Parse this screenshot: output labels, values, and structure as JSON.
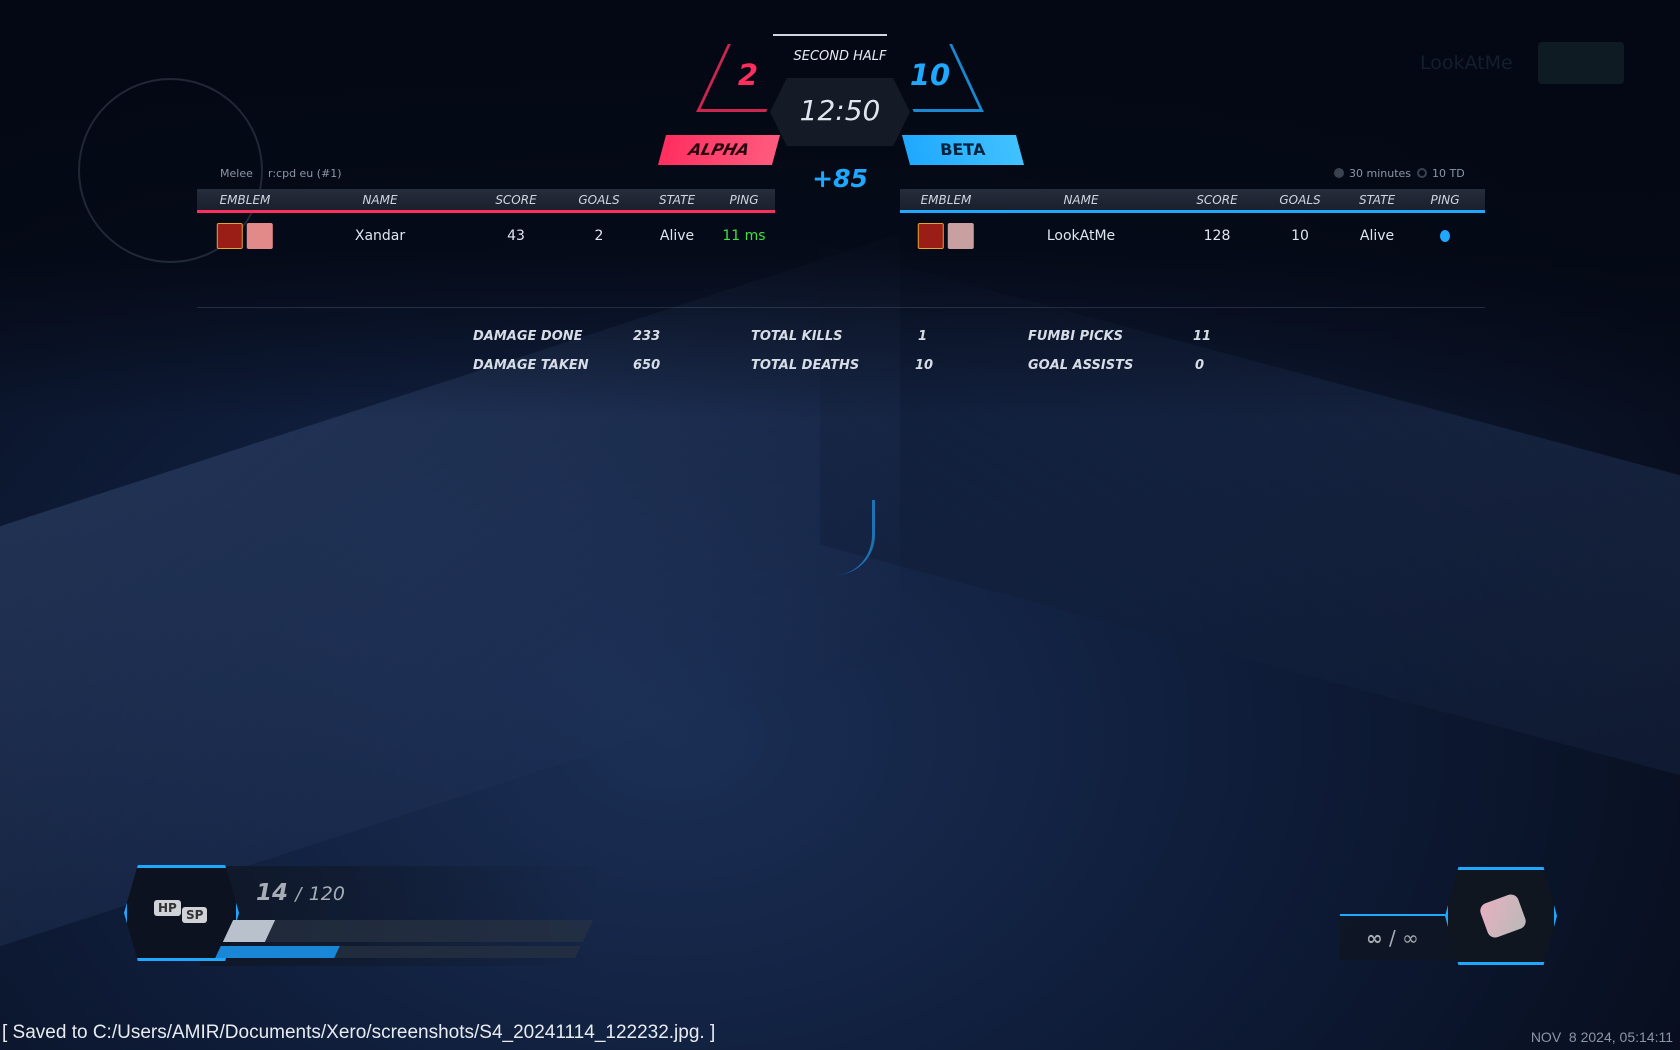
{
  "match": {
    "phase": "SECOND HALF",
    "timer": "12:50",
    "score_diff": "+85",
    "mode": "Melee",
    "server": "r:cpd eu (#1)",
    "time_limit": "30 minutes",
    "goal_limit": "10 TD"
  },
  "teams": [
    {
      "name": "ALPHA",
      "score": "2",
      "color": "#ff2e5f"
    },
    {
      "name": "BETA",
      "score": "10",
      "color": "#1fa8ff"
    }
  ],
  "columns": [
    "EMBLEM",
    "NAME",
    "SCORE",
    "GOALS",
    "STATE",
    "PING"
  ],
  "alpha_players": [
    {
      "name": "Xandar",
      "score": "43",
      "goals": "2",
      "state": "Alive",
      "ping": "11 ms",
      "ping_color": "#3ee043"
    }
  ],
  "beta_players": [
    {
      "name": "LookAtMe",
      "score": "128",
      "goals": "10",
      "state": "Alive",
      "ping_icon": "connection-icon"
    }
  ],
  "stats": [
    {
      "label": "DAMAGE DONE",
      "value": "233"
    },
    {
      "label": "DAMAGE TAKEN",
      "value": "650"
    },
    {
      "label": "TOTAL KILLS",
      "value": "1"
    },
    {
      "label": "TOTAL DEATHS",
      "value": "10"
    },
    {
      "label": "FUMBI PICKS",
      "value": "11"
    },
    {
      "label": "GOAL ASSISTS",
      "value": "0"
    }
  ],
  "spectate": {
    "name": "LookAtMe"
  },
  "hud": {
    "hp_label": "HP",
    "sp_label": "SP",
    "hp_current": "14",
    "hp_max": "120",
    "hp_fraction": 0.117,
    "sp_fraction": 0.33,
    "ammo_current": "∞",
    "ammo_max": "∞",
    "ammo_sep": "/",
    "hp_sep": "/"
  },
  "footer": {
    "saved": "[ Saved to C:/Users/AMIR/Documents/Xero/screenshots/S4_20241114_122232.jpg. ]",
    "datetime": "NOV  8 2024, 05:14:11"
  }
}
